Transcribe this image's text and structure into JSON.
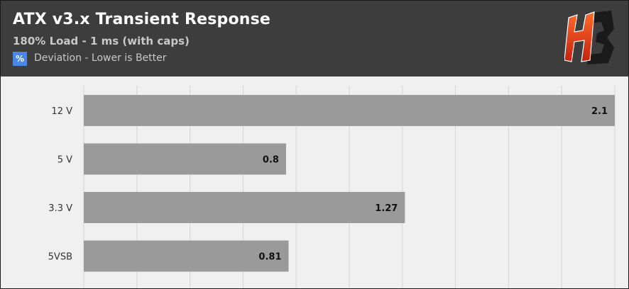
{
  "header": {
    "title": "ATX v3.x Transient Response",
    "subtitle": "180% Load - 1 ms (with caps)",
    "legend": {
      "symbol": "%",
      "label": "Deviation - Lower is Better",
      "color": "#4a86e8"
    },
    "logo": "hb-logo"
  },
  "colors": {
    "header_bg": "#3d3d3d",
    "plot_bg": "#f0f0f0",
    "bar": "#9a9a9a",
    "grid": "#d4d4d4",
    "accent": "#e8421e"
  },
  "chart_data": {
    "type": "bar",
    "orientation": "horizontal",
    "categories": [
      "12 V",
      "5 V",
      "3.3 V",
      "5VSB"
    ],
    "series": [
      {
        "values": [
          2.1,
          0.8,
          1.27,
          0.81
        ]
      }
    ],
    "value_labels": [
      "2.1",
      "0.8",
      "1.27",
      "0.81"
    ],
    "xlim": [
      0,
      2.1
    ],
    "grid": true,
    "legend_position": "top-left"
  }
}
